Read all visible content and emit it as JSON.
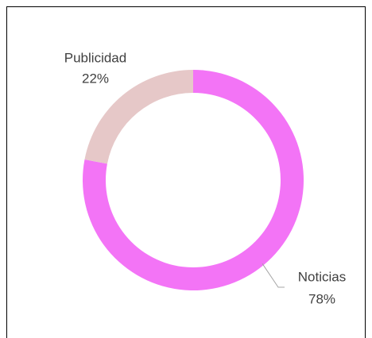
{
  "chart_data": {
    "type": "pie",
    "donut": true,
    "categories": [
      "Noticias",
      "Publicidad"
    ],
    "values": [
      78,
      22
    ],
    "value_labels": [
      "78%",
      "22%"
    ],
    "colors": [
      "#f374f6",
      "#e6c8c8"
    ]
  }
}
